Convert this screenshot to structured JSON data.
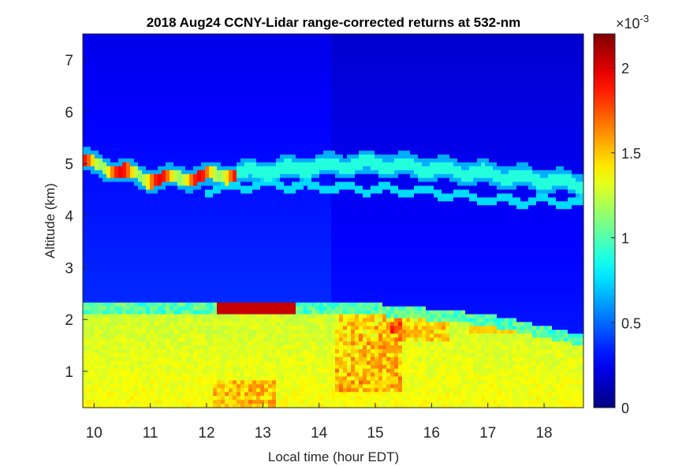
{
  "chart_data": {
    "type": "heatmap",
    "title": "2018 Aug24 CCNY-Lidar range-corrected returns at 532-nm",
    "xlabel": "Local time (hour EDT)",
    "ylabel": "Altitude (km)",
    "xlim": [
      9.8,
      18.7
    ],
    "ylim": [
      0.3,
      7.5
    ],
    "x_ticks": [
      10,
      11,
      12,
      13,
      14,
      15,
      16,
      17,
      18
    ],
    "y_ticks": [
      1,
      2,
      3,
      4,
      5,
      6,
      7
    ],
    "colormap": "jet",
    "colorbar": {
      "range": [
        0,
        2.2
      ],
      "ticks": [
        0,
        0.5,
        1,
        1.5,
        2
      ],
      "tick_labels": [
        "0",
        "0.5",
        "1",
        "1.5",
        "2"
      ],
      "exponent_label": "×10",
      "exponent": "-3"
    },
    "features": {
      "boundary_layer_top_km": {
        "x": [
          9.8,
          11,
          12,
          13,
          14,
          15,
          16,
          17,
          18.7
        ],
        "y": [
          2.25,
          2.2,
          2.2,
          2.25,
          2.2,
          2.2,
          2.1,
          2.0,
          1.6
        ]
      },
      "cloud_layer_upper_km": {
        "x": [
          9.8,
          11,
          12,
          13,
          14,
          15,
          16,
          17,
          18.7
        ],
        "y": [
          5.05,
          4.7,
          4.75,
          4.85,
          4.95,
          5.0,
          4.9,
          4.8,
          4.6
        ]
      },
      "cloud_layer_lower_km": {
        "x": [
          12,
          13,
          14,
          15,
          16,
          17,
          18.7
        ],
        "y": [
          4.5,
          4.6,
          4.55,
          4.5,
          4.45,
          4.3,
          4.25
        ]
      }
    }
  }
}
